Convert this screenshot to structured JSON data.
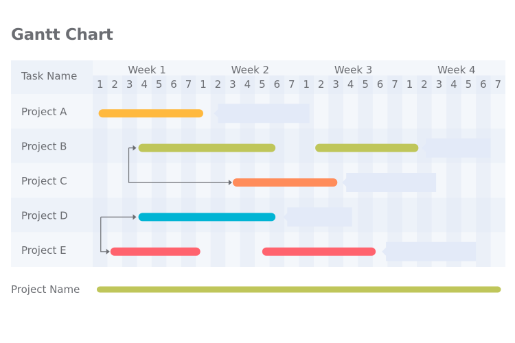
{
  "title": "Gantt Chart",
  "chart_data": {
    "type": "gantt",
    "title": "Gantt Chart",
    "header_label": "Task Name",
    "weeks": [
      "Week 1",
      "Week 2",
      "Week 3",
      "Week 4"
    ],
    "days_per_week": [
      "1",
      "2",
      "3",
      "4",
      "5",
      "6",
      "7"
    ],
    "total_days": 28,
    "tasks": [
      {
        "name": "Project A",
        "color": "#ffb93e",
        "bars": [
          [
            0.4,
            7.5
          ]
        ],
        "slack": [
          8.5,
          14.7
        ]
      },
      {
        "name": "Project B",
        "color": "#bfc65a",
        "bars": [
          [
            3.1,
            12.4
          ],
          [
            15.1,
            22.1
          ]
        ],
        "slack": [
          22.6,
          27.0
        ]
      },
      {
        "name": "Project C",
        "color": "#ff8c5a",
        "bars": [
          [
            9.5,
            16.6
          ]
        ],
        "slack": [
          17.2,
          23.3
        ]
      },
      {
        "name": "Project D",
        "color": "#00b4d4",
        "bars": [
          [
            3.1,
            12.4
          ]
        ],
        "slack": [
          13.2,
          17.6
        ]
      },
      {
        "name": "Project E",
        "color": "#ff636e",
        "bars": [
          [
            1.2,
            7.3
          ],
          [
            11.5,
            19.2
          ]
        ],
        "slack": [
          19.9,
          26.0
        ]
      }
    ],
    "dependencies": [
      {
        "from": "Project B",
        "to": "Project C"
      },
      {
        "from": "Project D",
        "to": "Project E"
      }
    ],
    "summary": {
      "name": "Project Name",
      "color": "#bfc65a",
      "range": [
        0.3,
        27.3
      ]
    }
  }
}
